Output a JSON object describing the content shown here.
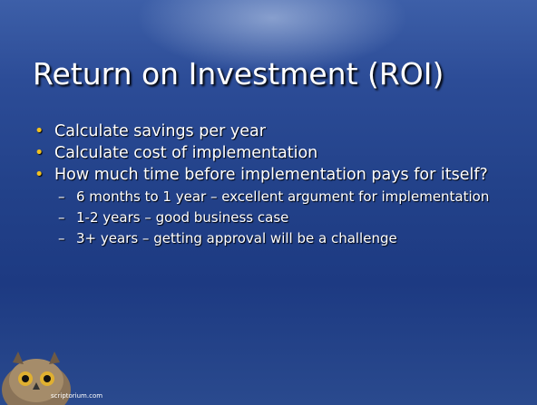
{
  "slide": {
    "title": "Return on Investment (ROI)",
    "bullets": [
      {
        "text": "Calculate savings per year",
        "sub": []
      },
      {
        "text": "Calculate cost of implementation",
        "sub": []
      },
      {
        "text": "How much time before implementation pays for itself?",
        "sub": [
          "6 months to 1 year – excellent argument for implementation",
          "1-2 years – good business case",
          "3+ years – getting approval will be a challenge"
        ]
      }
    ],
    "footer": "scriptorium.com"
  }
}
